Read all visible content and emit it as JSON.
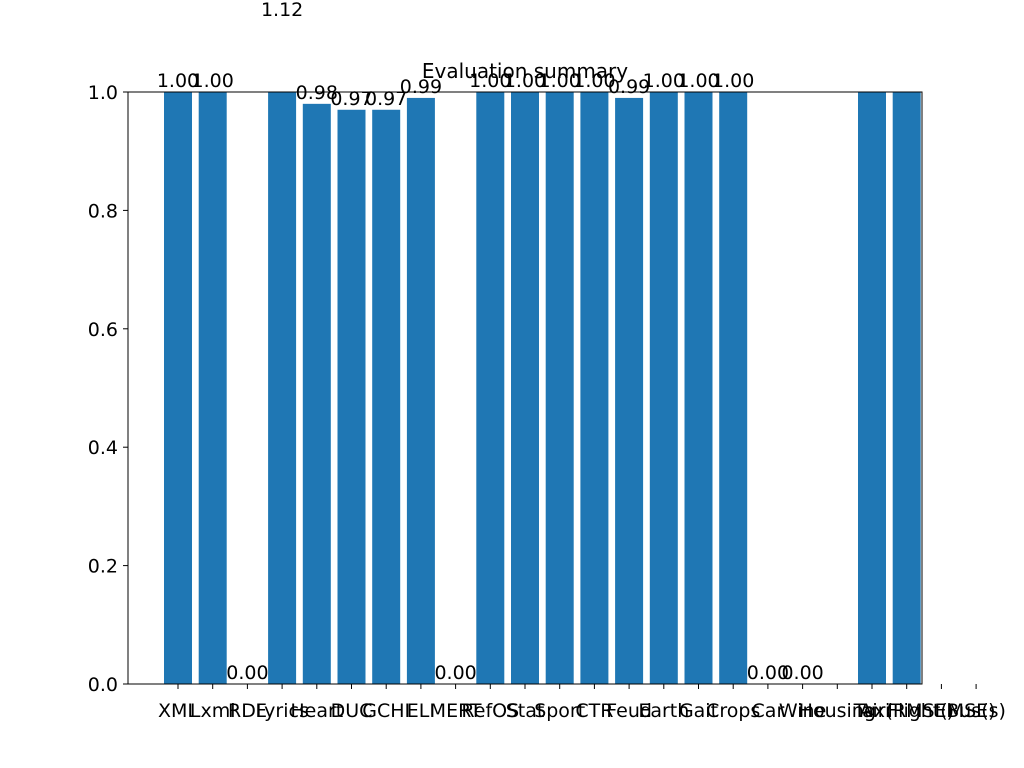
{
  "chart_data": {
    "type": "bar",
    "title": "Evaluation summary",
    "xlabel": "",
    "ylabel": "",
    "ylim": [
      0,
      1.0
    ],
    "yticks": [
      "0.0",
      "0.2",
      "0.4",
      "0.6",
      "0.8",
      "1.0"
    ],
    "grid": false,
    "bar_color": "#1f77b4",
    "categories": [
      "XML",
      "Lxml",
      "RDF",
      "Lyrics",
      "Heart",
      "DUC",
      "GCHI",
      "ELI",
      "MERT",
      "RefOS",
      "Stat",
      "Sport",
      "CTR",
      "Feud",
      "Earth",
      "Gait",
      "Crops",
      "Car",
      "Wine",
      "Housing",
      "Taxi",
      "Air(RMSE)",
      "Flight(MSE)",
      "Bus(s)"
    ],
    "values": [
      1.0,
      1.0,
      0.0,
      1.12,
      0.98,
      0.97,
      0.97,
      0.99,
      0.0,
      1.0,
      1.0,
      1.0,
      1.0,
      0.99,
      1.0,
      1.0,
      1.0,
      0.0,
      0.0,
      null,
      1.0,
      1.0,
      null,
      null
    ],
    "value_labels": [
      "1.00",
      "1.00",
      "0.00",
      "1.12",
      "0.98",
      "0.97",
      "0.97",
      "0.99",
      "0.00",
      "1.00",
      "1.00",
      "1.00",
      "1.00",
      "0.99",
      "1.00",
      "1.00",
      "1.00",
      "0.00",
      "0.00",
      "",
      "",
      "",
      "",
      ""
    ]
  }
}
